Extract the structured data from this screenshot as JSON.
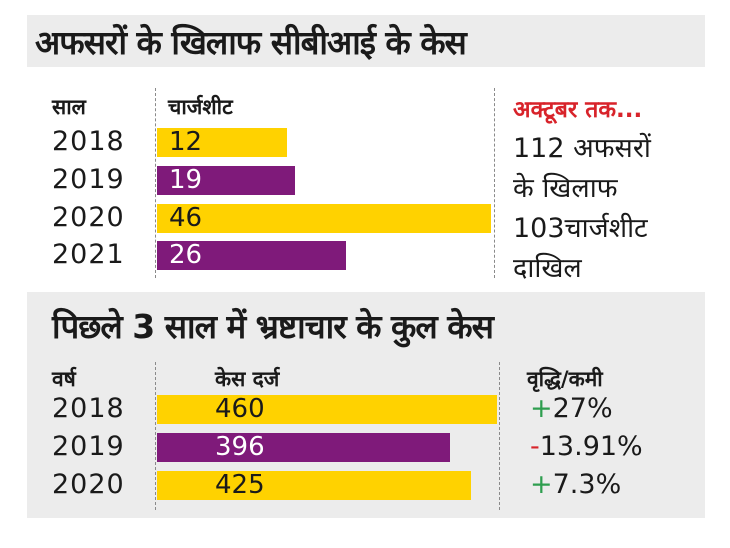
{
  "chart_data": [
    {
      "type": "bar",
      "orientation": "horizontal",
      "title": "अफसरों के खिलाफ सीबीआई के केस",
      "category_header": "साल",
      "value_header": "चार्जशीट",
      "categories": [
        "2018",
        "2019",
        "2020",
        "2021"
      ],
      "values": [
        12,
        19,
        46,
        26
      ],
      "bar_colors": [
        "#ffd200",
        "#7f1a7a",
        "#ffd200",
        "#7f1a7a"
      ],
      "label_colors": [
        "#1a1a1a",
        "#ffffff",
        "#1a1a1a",
        "#ffffff"
      ],
      "note": {
        "heading": "अक्टूबर तक...",
        "lines": [
          "112 अफसरों",
          "के खिलाफ",
          "103चार्जशीट",
          "दाखिल"
        ]
      }
    },
    {
      "type": "bar",
      "orientation": "horizontal",
      "title": "पिछले 3 साल में भ्रष्टाचार के कुल केस",
      "category_header": "वर्ष",
      "value_header": "केस दर्ज",
      "change_header": "वृद्धि/कमी",
      "categories": [
        "2018",
        "2019",
        "2020"
      ],
      "values": [
        460,
        396,
        425
      ],
      "bar_colors": [
        "#ffd200",
        "#7f1a7a",
        "#ffd200"
      ],
      "label_colors": [
        "#1a1a1a",
        "#ffffff",
        "#1a1a1a"
      ],
      "changes": [
        {
          "sign": "+",
          "value": "27%",
          "color": "#2e9e4f"
        },
        {
          "sign": "-",
          "value": "13.91%",
          "color": "#d8232a"
        },
        {
          "sign": "+",
          "value": "7.3%",
          "color": "#2e9e4f"
        }
      ]
    }
  ],
  "colors": {
    "heading_red": "#d8232a",
    "panel_gray": "#ececec"
  }
}
